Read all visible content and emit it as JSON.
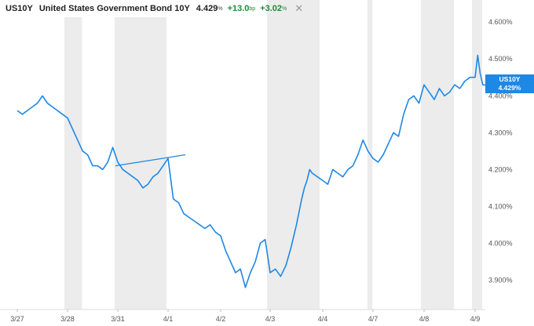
{
  "header": {
    "symbol": "US10Y",
    "name": "United States Government Bond 10Y",
    "last": "4.429",
    "last_unit": "%",
    "change": "+13.0",
    "change_unit": "bp",
    "change_pct": "+3.02",
    "change_pct_unit": "%",
    "close_glyph": "✕"
  },
  "price_tag": {
    "symbol": "US10Y",
    "value": "4.429%"
  },
  "colors": {
    "line": "#1e88e5",
    "session_shade": "#ececec",
    "up": "#1e8c3a",
    "axis_text": "#555555"
  },
  "chart_data": {
    "type": "line",
    "title": "United States Government Bond 10Y",
    "x_tick_labels": [
      "3/27",
      "3/28",
      "3/31",
      "4/1",
      "4/2",
      "4/3",
      "4/4",
      "4/7",
      "4/8",
      "4/9"
    ],
    "y_tick_labels": [
      "4.600%",
      "4.500%",
      "4.400%",
      "4.300%",
      "4.200%",
      "4.100%",
      "4.000%",
      "3.900%"
    ],
    "y_ticks": [
      4.6,
      4.5,
      4.4,
      4.3,
      4.2,
      4.1,
      4.0,
      3.9
    ],
    "ylim": [
      3.82,
      4.66
    ],
    "xlim": [
      0,
      10
    ],
    "y_axis_position": "right",
    "grid": false,
    "shaded_sessions": [
      [
        1.0,
        1.35
      ],
      [
        2.0,
        3.03
      ],
      [
        5.0,
        6.0
      ],
      [
        6.95,
        7.05
      ],
      [
        8.0,
        8.65
      ],
      [
        9.0,
        9.2
      ]
    ],
    "last_value": 4.429,
    "series": [
      {
        "x": [
          0.0,
          0.1,
          0.2,
          0.3,
          0.4,
          0.5,
          0.55,
          0.6,
          0.7,
          0.8,
          0.9,
          1.0,
          1.1,
          1.2,
          1.3,
          1.4,
          1.5,
          1.6,
          1.7,
          1.8,
          1.9,
          2.0,
          2.1,
          2.2,
          2.3,
          2.4,
          2.5,
          2.6,
          2.7,
          2.8,
          2.9,
          3.0,
          3.1,
          3.2,
          3.3,
          3.4,
          3.5,
          3.6,
          3.7,
          3.8,
          3.9,
          4.0,
          4.1,
          4.2,
          4.3,
          4.4,
          4.5,
          4.6,
          4.7,
          4.8,
          4.9,
          5.0,
          5.1,
          5.2,
          5.3,
          5.4,
          5.5,
          5.6,
          5.65,
          5.7,
          5.75,
          5.8,
          5.9,
          6.0,
          6.1,
          6.2,
          6.3,
          6.4,
          6.5,
          6.6,
          6.7,
          6.8,
          6.9,
          7.0,
          7.1,
          7.2,
          7.3,
          7.4,
          7.5,
          7.6,
          7.7,
          7.8,
          7.9,
          8.0,
          8.1,
          8.2,
          8.3,
          8.4,
          8.5,
          8.6,
          8.7,
          8.8,
          8.9,
          9.0,
          9.05,
          9.1,
          9.15,
          9.2
        ],
        "y": [
          4.36,
          4.35,
          4.36,
          4.37,
          4.38,
          4.4,
          4.39,
          4.38,
          4.37,
          4.36,
          4.35,
          4.34,
          4.31,
          4.28,
          4.25,
          4.24,
          4.21,
          4.21,
          4.2,
          4.22,
          4.26,
          4.22,
          4.2,
          4.19,
          4.18,
          4.17,
          4.15,
          4.16,
          4.18,
          4.19,
          4.21,
          4.23,
          4.12,
          4.11,
          4.08,
          4.07,
          4.06,
          4.05,
          4.04,
          4.05,
          4.03,
          4.02,
          3.98,
          3.95,
          3.92,
          3.93,
          3.88,
          3.92,
          3.95,
          4.0,
          4.01,
          3.92,
          3.93,
          3.91,
          3.94,
          3.99,
          4.05,
          4.12,
          4.15,
          4.17,
          4.2,
          4.19,
          4.18,
          4.17,
          4.16,
          4.2,
          4.19,
          4.18,
          4.2,
          4.21,
          4.24,
          4.28,
          4.25,
          4.23,
          4.22,
          4.24,
          4.27,
          4.3,
          4.29,
          4.35,
          4.39,
          4.4,
          4.38,
          4.43,
          4.41,
          4.39,
          4.42,
          4.4,
          4.41,
          4.43,
          4.42,
          4.44,
          4.45,
          4.45,
          4.51,
          4.46,
          4.43,
          4.429
        ]
      }
    ]
  }
}
